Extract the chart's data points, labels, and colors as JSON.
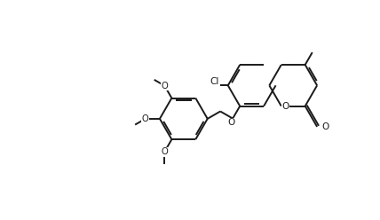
{
  "bg_color": "#ffffff",
  "line_color": "#1a1a1a",
  "line_width": 1.4,
  "figsize": [
    4.28,
    2.48
  ],
  "dpi": 100,
  "xlim": [
    0,
    10.7
  ],
  "ylim": [
    0,
    6.2
  ]
}
